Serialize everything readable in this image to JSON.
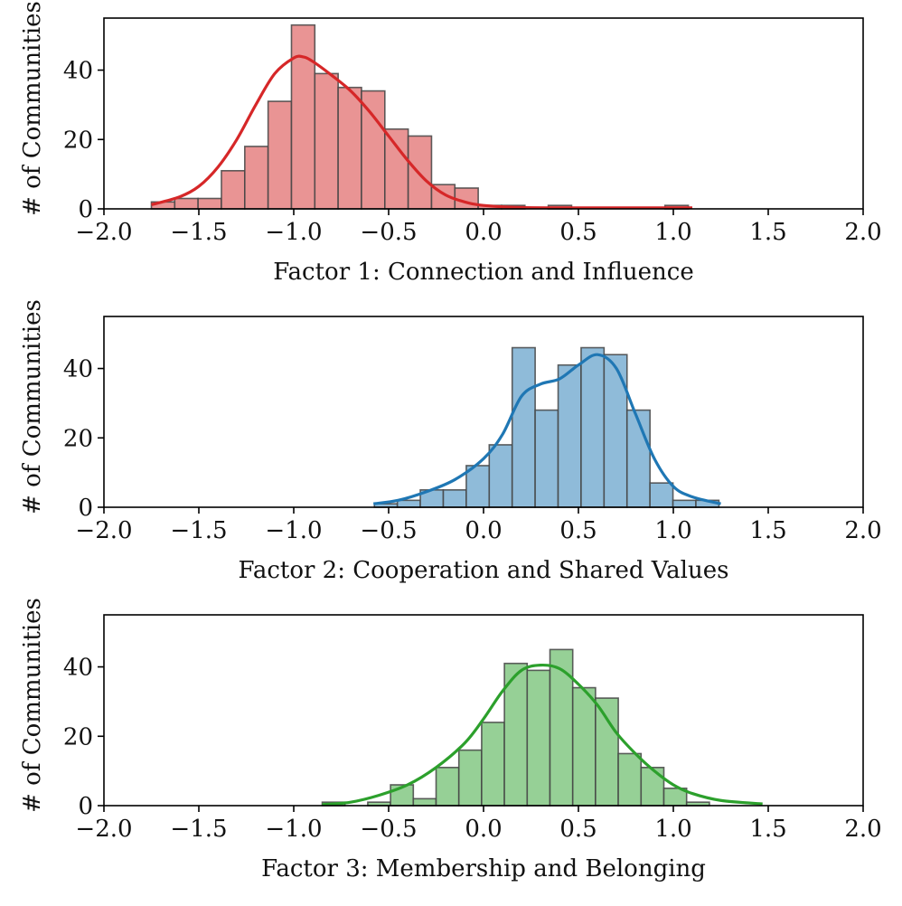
{
  "chart_data": [
    {
      "type": "histogram",
      "xlabel": "Factor 1: Connection and Influence",
      "ylabel": "# of Communities",
      "xlim": [
        -2.0,
        2.0
      ],
      "ylim": [
        0,
        55
      ],
      "xticks": [
        "−2.0",
        "−1.5",
        "−1.0",
        "−0.5",
        "0.0",
        "0.5",
        "1.0",
        "1.5",
        "2.0"
      ],
      "yticks": [
        "0",
        "20",
        "40"
      ],
      "color": "#d62728",
      "fill_color": "#e99494",
      "bin_edges": [
        -1.75,
        -1.627,
        -1.504,
        -1.381,
        -1.258,
        -1.135,
        -1.012,
        -0.889,
        -0.766,
        -0.643,
        -0.52,
        -0.397,
        -0.274,
        -0.151,
        -0.028,
        0.095,
        0.218,
        0.341,
        0.464,
        0.587,
        0.71,
        0.833,
        0.956,
        1.079
      ],
      "counts": [
        2,
        3,
        3,
        11,
        18,
        31,
        53,
        39,
        35,
        34,
        23,
        21,
        7,
        6,
        1,
        1,
        0,
        1,
        0,
        0,
        0,
        0,
        1
      ],
      "kde": {
        "x": [
          -1.75,
          -1.6,
          -1.5,
          -1.4,
          -1.3,
          -1.2,
          -1.1,
          -1.0,
          -0.95,
          -0.9,
          -0.8,
          -0.7,
          -0.6,
          -0.5,
          -0.4,
          -0.3,
          -0.2,
          -0.1,
          0.0,
          0.2,
          0.5,
          0.8,
          1.1
        ],
        "y": [
          1.2,
          3.5,
          6.5,
          12,
          20,
          30,
          39,
          43.5,
          43.8,
          42.5,
          38.5,
          34,
          28,
          21,
          14,
          8,
          4,
          2,
          1,
          0.4,
          0.3,
          0.3,
          0.3
        ]
      }
    },
    {
      "type": "histogram",
      "xlabel": "Factor 2: Cooperation and Shared Values",
      "ylabel": "# of Communities",
      "xlim": [
        -2.0,
        2.0
      ],
      "ylim": [
        0,
        55
      ],
      "xticks": [
        "−2.0",
        "−1.5",
        "−1.0",
        "−0.5",
        "0.0",
        "0.5",
        "1.0",
        "1.5",
        "2.0"
      ],
      "yticks": [
        "0",
        "20",
        "40"
      ],
      "color": "#1f77b4",
      "fill_color": "#8fbbd9",
      "bin_edges": [
        -0.575,
        -0.454,
        -0.333,
        -0.212,
        -0.091,
        0.03,
        0.151,
        0.272,
        0.393,
        0.514,
        0.635,
        0.756,
        0.877,
        0.998,
        1.119,
        1.24
      ],
      "counts": [
        1,
        2,
        5,
        5,
        12,
        18,
        46,
        28,
        41,
        46,
        44,
        28,
        7,
        2,
        2
      ],
      "kde": {
        "x": [
          -0.58,
          -0.45,
          -0.3,
          -0.15,
          0.0,
          0.1,
          0.2,
          0.3,
          0.4,
          0.5,
          0.6,
          0.7,
          0.8,
          0.9,
          1.0,
          1.1,
          1.25
        ],
        "y": [
          1,
          2,
          4.5,
          8,
          14,
          21,
          32,
          35.5,
          37,
          41,
          44,
          40,
          27,
          14,
          6,
          3,
          1
        ]
      }
    },
    {
      "type": "histogram",
      "xlabel": "Factor 3: Membership and Belonging",
      "ylabel": "# of Communities",
      "xlim": [
        -2.0,
        2.0
      ],
      "ylim": [
        0,
        55
      ],
      "xticks": [
        "−2.0",
        "−1.5",
        "−1.0",
        "−0.5",
        "0.0",
        "0.5",
        "1.0",
        "1.5",
        "2.0"
      ],
      "yticks": [
        "0",
        "20",
        "40"
      ],
      "color": "#2ca02c",
      "fill_color": "#96d096",
      "bin_edges": [
        -0.85,
        -0.73,
        -0.61,
        -0.49,
        -0.37,
        -0.25,
        -0.13,
        -0.01,
        0.11,
        0.23,
        0.35,
        0.47,
        0.59,
        0.71,
        0.83,
        0.95,
        1.07,
        1.19
      ],
      "counts": [
        1,
        0,
        1,
        6,
        2,
        11,
        16,
        24,
        41,
        39,
        45,
        34,
        31,
        15,
        11,
        5,
        1
      ],
      "kde": {
        "x": [
          -0.85,
          -0.7,
          -0.55,
          -0.4,
          -0.25,
          -0.1,
          0.0,
          0.1,
          0.2,
          0.3,
          0.4,
          0.5,
          0.6,
          0.7,
          0.8,
          0.9,
          1.0,
          1.1,
          1.25,
          1.47
        ],
        "y": [
          0.3,
          1,
          3,
          6,
          11,
          18,
          25,
          33,
          39,
          40.5,
          39.5,
          35,
          29,
          21,
          15,
          10,
          6,
          3.5,
          1.5,
          0.5
        ]
      }
    }
  ]
}
